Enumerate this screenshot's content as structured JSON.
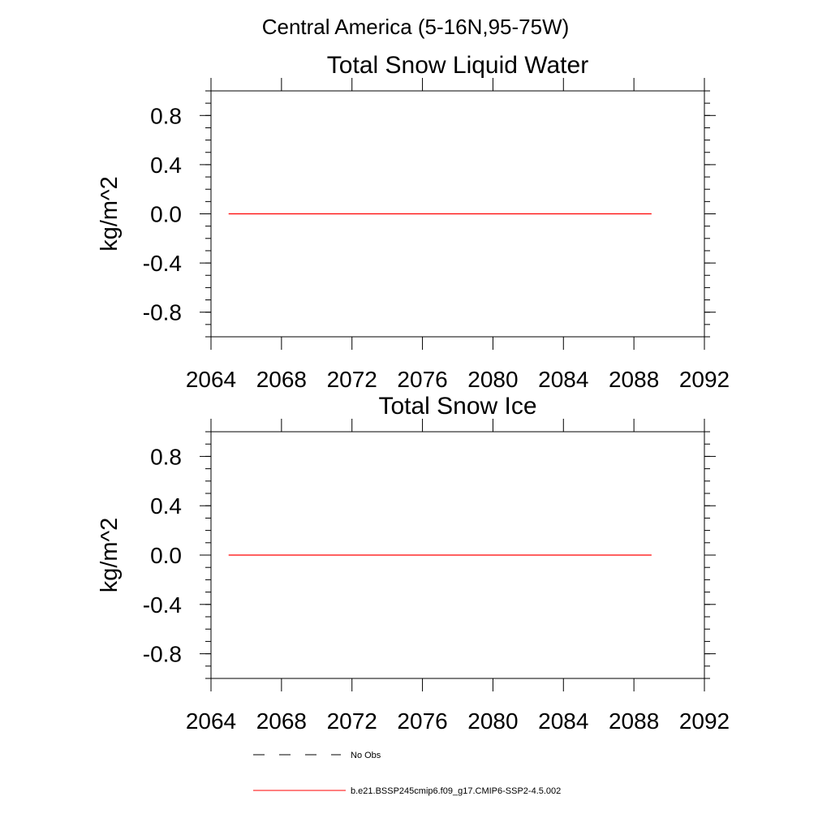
{
  "figure": {
    "title": "Central America (5-16N,95-75W)"
  },
  "colors": {
    "model_line": "#ff0000",
    "obs_line": "#000000",
    "axis": "#000000",
    "background": "#ffffff"
  },
  "legend": {
    "placement": "bottom-center",
    "entries": [
      {
        "label": "No Obs",
        "style": "dashed",
        "color": "#000000"
      },
      {
        "label": "b.e21.BSSP245cmip6.f09_g17.CMIP6-SSP2-4.5.002",
        "style": "solid",
        "color": "#ff0000"
      }
    ]
  },
  "chart_data": [
    {
      "type": "line",
      "title": "Total Snow Liquid Water",
      "xlabel": "",
      "ylabel": "kg/m^2",
      "xlim": [
        2064,
        2092
      ],
      "ylim": [
        -1.0,
        1.0
      ],
      "xticks": [
        "2064",
        "2068",
        "2072",
        "2076",
        "2080",
        "2084",
        "2088",
        "2092"
      ],
      "yticks": [
        "0.8",
        "0.4",
        "0.0",
        "-0.4",
        "-0.8"
      ],
      "grid": false,
      "series": [
        {
          "name": "b.e21.BSSP245cmip6.f09_g17.CMIP6-SSP2-4.5.002",
          "color": "#ff0000",
          "x": [
            2065,
            2089
          ],
          "y": [
            0.0,
            0.0
          ]
        }
      ]
    },
    {
      "type": "line",
      "title": "Total Snow Ice",
      "xlabel": "",
      "ylabel": "kg/m^2",
      "xlim": [
        2064,
        2092
      ],
      "ylim": [
        -1.0,
        1.0
      ],
      "xticks": [
        "2064",
        "2068",
        "2072",
        "2076",
        "2080",
        "2084",
        "2088",
        "2092"
      ],
      "yticks": [
        "0.8",
        "0.4",
        "0.0",
        "-0.4",
        "-0.8"
      ],
      "grid": false,
      "series": [
        {
          "name": "b.e21.BSSP245cmip6.f09_g17.CMIP6-SSP2-4.5.002",
          "color": "#ff0000",
          "x": [
            2065,
            2089
          ],
          "y": [
            0.0,
            0.0
          ]
        }
      ]
    }
  ]
}
